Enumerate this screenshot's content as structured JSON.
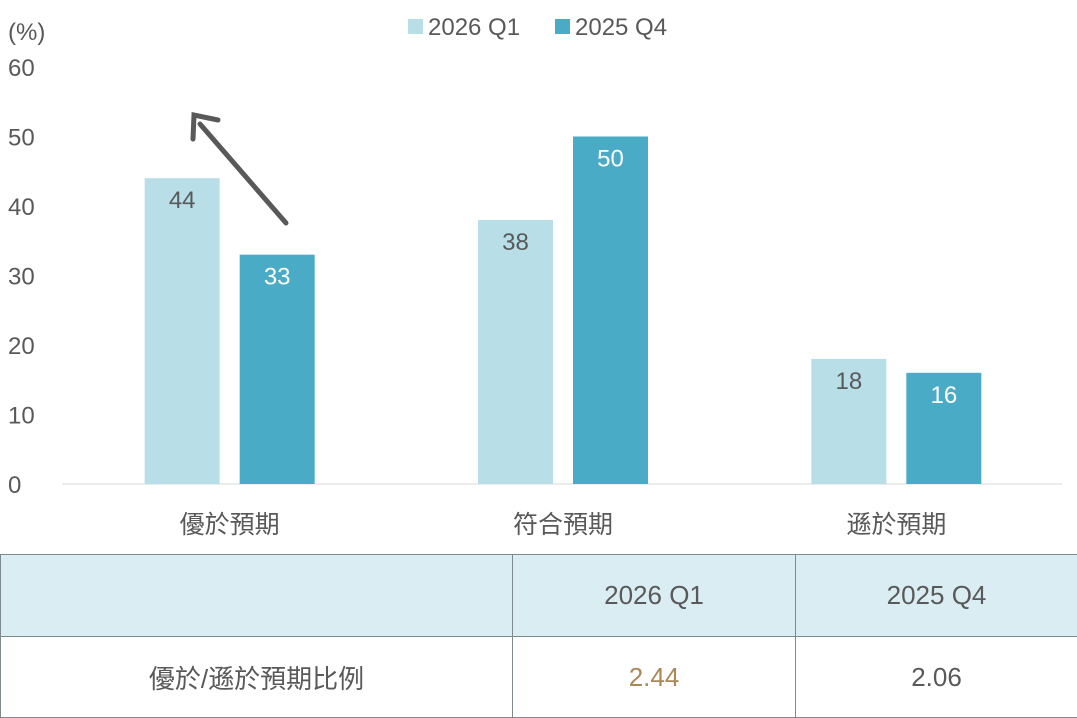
{
  "chart_data": {
    "type": "bar",
    "ylabel": "(%)",
    "ylim": [
      0,
      60
    ],
    "yticks": [
      0,
      10,
      20,
      30,
      40,
      50,
      60
    ],
    "categories": [
      "優於預期",
      "符合預期",
      "遜於預期"
    ],
    "series": [
      {
        "name": "2026 Q1",
        "values": [
          44,
          38,
          18
        ],
        "color": "#b8dee8",
        "label_color": "#595959"
      },
      {
        "name": "2025 Q4",
        "values": [
          33,
          50,
          16
        ],
        "color": "#4aabc6",
        "label_color": "#ffffff"
      }
    ],
    "legend": "top-center",
    "grid": false,
    "annotation": "upward arrow above 優於預期 group"
  },
  "table": {
    "headers": [
      "",
      "2026 Q1",
      "2025 Q4"
    ],
    "row": {
      "label": "優於/遜於預期比例",
      "values": [
        "2.44",
        "2.06"
      ]
    },
    "highlight_color": "#a9885a"
  }
}
